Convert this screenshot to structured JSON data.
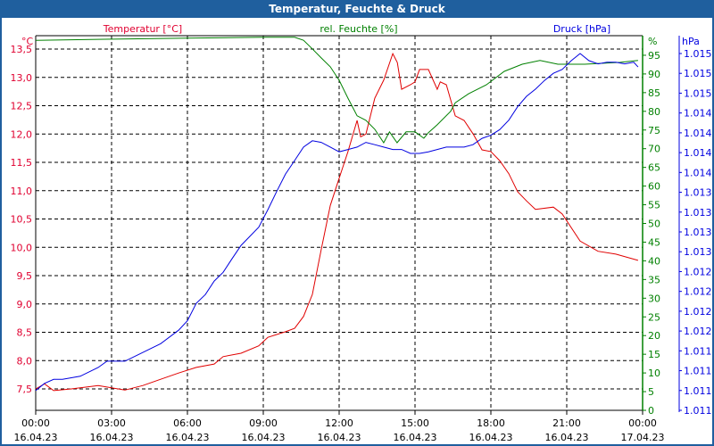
{
  "window": {
    "title": "Temperatur, Feuchte & Druck"
  },
  "chart_data": {
    "type": "line",
    "title": "Temperatur, Feuchte & Druck",
    "x_unit": "hours since 16.04.23 00:00",
    "xlim": [
      0,
      24
    ],
    "x_ticks": [
      {
        "time": "00:00",
        "date": "16.04.23"
      },
      {
        "time": "03:00",
        "date": "16.04.23"
      },
      {
        "time": "06:00",
        "date": "16.04.23"
      },
      {
        "time": "09:00",
        "date": "16.04.23"
      },
      {
        "time": "12:00",
        "date": "16.04.23"
      },
      {
        "time": "15:00",
        "date": "16.04.23"
      },
      {
        "time": "18:00",
        "date": "16.04.23"
      },
      {
        "time": "21:00",
        "date": "16.04.23"
      },
      {
        "time": "00:00",
        "date": "17.04.23"
      }
    ],
    "grid": true,
    "axes": {
      "temp": {
        "label": "Temperatur [°C]",
        "unit": "°C",
        "color": "#e00030",
        "ylim": [
          7.1,
          13.75
        ],
        "ticks": [
          "13,5",
          "13,0",
          "12,5",
          "12,0",
          "11,5",
          "11,0",
          "10,5",
          "10,0",
          "9,5",
          "9,0",
          "8,5",
          "8,0",
          "7,5"
        ],
        "tick_values": [
          13.5,
          13.0,
          12.5,
          12.0,
          11.5,
          11.0,
          10.5,
          10.0,
          9.5,
          9.0,
          8.5,
          8.0,
          7.5
        ]
      },
      "hum": {
        "label": "rel. Feuchte [%]",
        "unit": "%",
        "color": "#008000",
        "ylim": [
          0,
          100
        ],
        "ticks": [
          "95",
          "90",
          "85",
          "80",
          "75",
          "70",
          "65",
          "60",
          "55",
          "50",
          "45",
          "40",
          "35",
          "30",
          "25",
          "20",
          "15",
          "10",
          "5",
          "0"
        ],
        "tick_values": [
          95,
          90,
          85,
          80,
          75,
          70,
          65,
          60,
          55,
          50,
          45,
          40,
          35,
          30,
          25,
          20,
          15,
          10,
          5,
          0
        ]
      },
      "press": {
        "label": "Druck [hPa]",
        "unit": "hPa",
        "color": "#0000e0",
        "ylim": [
          1010.9,
          1015.4
        ],
        "ticks": [
          "1.015",
          "1.015",
          "1.015",
          "1.014",
          "1.014",
          "1.014",
          "1.014",
          "1.013",
          "1.013",
          "1.013",
          "1.013",
          "1.012",
          "1.012",
          "1.012",
          "1.012",
          "1.011",
          "1.011",
          "1.011",
          "1.011"
        ]
      }
    },
    "series": [
      {
        "name": "Temperatur",
        "axis": "temp",
        "color": "#e00000",
        "x": [
          0,
          0.35,
          0.71,
          1.41,
          2.47,
          3.53,
          4.24,
          4.94,
          5.65,
          6.35,
          7.06,
          7.41,
          8.12,
          8.82,
          9.18,
          9.88,
          10.24,
          10.59,
          10.94,
          11.29,
          11.65,
          12.0,
          12.35,
          12.71,
          12.85,
          13.06,
          13.41,
          13.76,
          14.12,
          14.3,
          14.47,
          14.82,
          15.0,
          15.18,
          15.53,
          15.88,
          16.0,
          16.24,
          16.59,
          16.94,
          17.3,
          17.65,
          18.0,
          18.35,
          18.71,
          19.06,
          19.41,
          19.76,
          20.47,
          20.82,
          21.53,
          22.24,
          22.94,
          23.82
        ],
        "y": [
          7.5,
          7.59,
          7.47,
          7.5,
          7.56,
          7.48,
          7.56,
          7.67,
          7.78,
          7.88,
          7.94,
          8.07,
          8.13,
          8.26,
          8.41,
          8.51,
          8.57,
          8.78,
          9.17,
          9.96,
          10.74,
          11.22,
          11.69,
          12.24,
          11.95,
          12.0,
          12.63,
          12.95,
          13.42,
          13.26,
          12.79,
          12.87,
          12.92,
          13.14,
          13.14,
          12.79,
          12.92,
          12.87,
          12.32,
          12.24,
          12.0,
          11.72,
          11.69,
          11.53,
          11.3,
          10.98,
          10.82,
          10.67,
          10.71,
          10.59,
          10.11,
          9.93,
          9.88,
          9.77
        ]
      },
      {
        "name": "rel. Feuchte",
        "axis": "hum",
        "color": "#008000",
        "x": [
          0,
          3,
          6,
          9,
          10.24,
          10.59,
          10.94,
          11.29,
          11.65,
          12.0,
          12.35,
          12.71,
          13.06,
          13.41,
          13.76,
          13.99,
          14.29,
          14.65,
          15.0,
          15.35,
          15.53,
          15.88,
          16.41,
          16.59,
          17.12,
          17.82,
          18.53,
          19.24,
          19.94,
          20.65,
          21.71,
          23.12,
          23.82
        ],
        "y": [
          99,
          99.3,
          99.6,
          99.8,
          99.8,
          99.0,
          96.7,
          94.3,
          91.9,
          88.3,
          83.5,
          78.8,
          77.6,
          75.2,
          71.6,
          74.5,
          71.6,
          74.5,
          74.5,
          72.8,
          74.3,
          76.4,
          80.0,
          82.3,
          84.7,
          87.1,
          90.7,
          92.6,
          93.6,
          92.6,
          92.6,
          93.1,
          93.6
        ]
      },
      {
        "name": "Druck",
        "axis": "press",
        "color": "#0000e0",
        "x": [
          0,
          0.35,
          0.71,
          1.06,
          1.76,
          2.47,
          2.82,
          3.53,
          4.24,
          4.94,
          5.65,
          6.0,
          6.35,
          6.71,
          7.06,
          7.41,
          7.76,
          8.12,
          8.82,
          9.18,
          9.53,
          9.88,
          10.24,
          10.59,
          10.94,
          11.29,
          11.65,
          12.0,
          12.35,
          12.71,
          13.06,
          13.41,
          13.76,
          14.12,
          14.47,
          14.82,
          15.18,
          15.53,
          16.24,
          16.94,
          17.29,
          17.65,
          18.0,
          18.35,
          18.71,
          19.06,
          19.41,
          19.76,
          20.12,
          20.47,
          20.82,
          21.18,
          21.53,
          21.88,
          22.24,
          22.59,
          22.94,
          23.29,
          23.65,
          23.82
        ],
        "y": [
          1011.15,
          1011.24,
          1011.29,
          1011.29,
          1011.33,
          1011.44,
          1011.52,
          1011.52,
          1011.63,
          1011.74,
          1011.91,
          1012.03,
          1012.25,
          1012.36,
          1012.53,
          1012.64,
          1012.81,
          1012.98,
          1013.21,
          1013.43,
          1013.66,
          1013.88,
          1014.05,
          1014.22,
          1014.3,
          1014.28,
          1014.22,
          1014.16,
          1014.19,
          1014.22,
          1014.28,
          1014.25,
          1014.22,
          1014.19,
          1014.19,
          1014.14,
          1014.14,
          1014.16,
          1014.22,
          1014.22,
          1014.25,
          1014.33,
          1014.37,
          1014.44,
          1014.56,
          1014.73,
          1014.86,
          1014.95,
          1015.06,
          1015.15,
          1015.2,
          1015.31,
          1015.4,
          1015.31,
          1015.27,
          1015.29,
          1015.29,
          1015.27,
          1015.29,
          1015.23
        ]
      }
    ]
  }
}
